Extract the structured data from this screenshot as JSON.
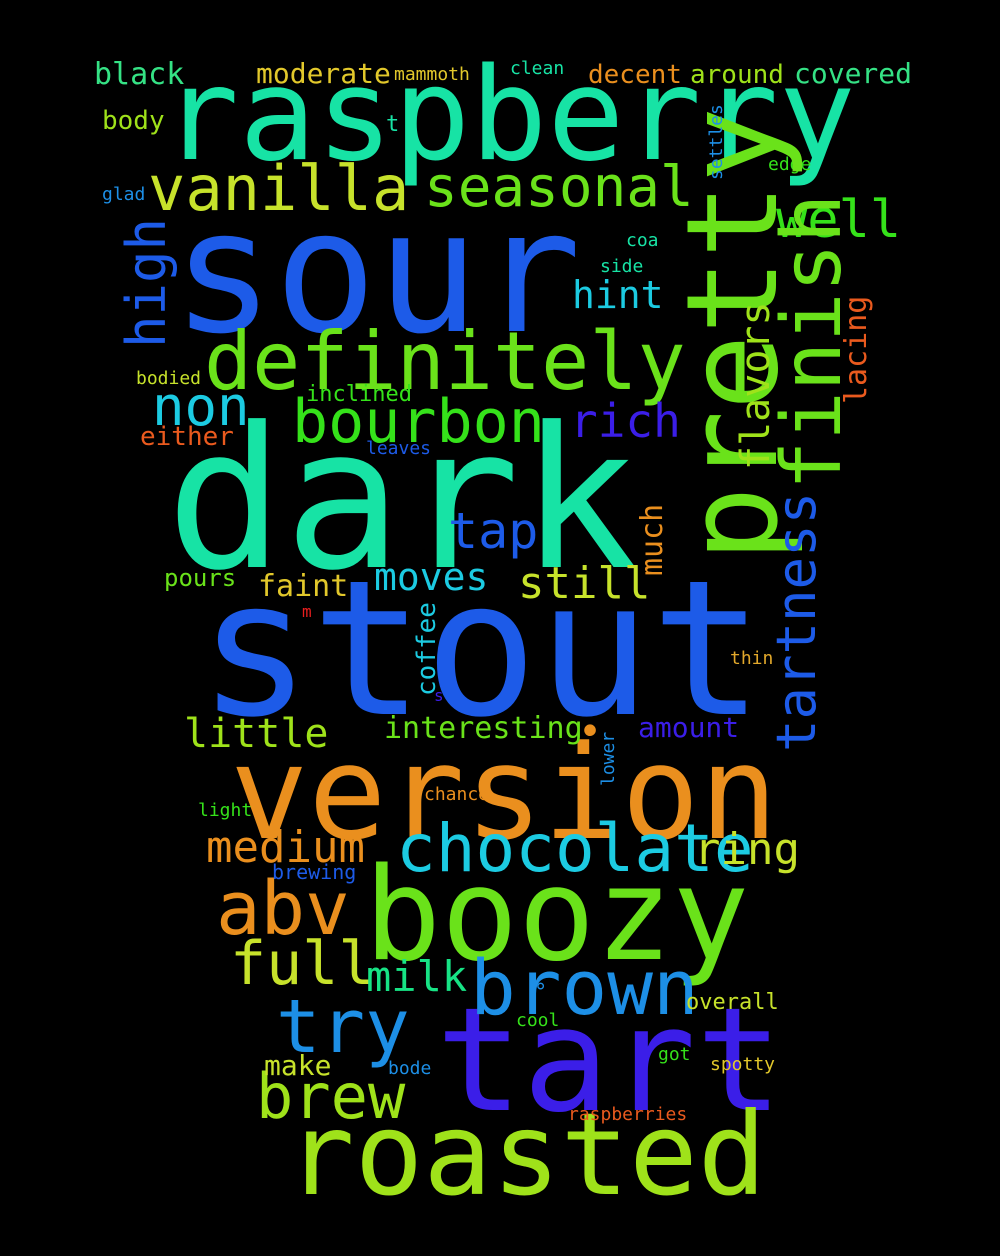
{
  "words": {
    "dark": {
      "text": "dark",
      "color": "#17e3a5"
    },
    "stout": {
      "text": "stout",
      "color": "#1d5be8"
    },
    "sour": {
      "text": "sour",
      "color": "#1d5be8"
    },
    "raspberry": {
      "text": "raspberry",
      "color": "#17e3a5"
    },
    "pretty": {
      "text": "pretty",
      "color": "#6ae21a"
    },
    "version": {
      "text": "version",
      "color": "#ea8f1e"
    },
    "boozy": {
      "text": "boozy",
      "color": "#6ae21a"
    },
    "tart": {
      "text": "tart",
      "color": "#3b1ee8"
    },
    "roasted": {
      "text": "roasted",
      "color": "#9fe21a"
    },
    "definitely": {
      "text": "definitely",
      "color": "#6ae21a"
    },
    "finish": {
      "text": "finish",
      "color": "#6ae21a"
    },
    "tartness": {
      "text": "tartness",
      "color": "#1d5be8"
    },
    "brown": {
      "text": "brown",
      "color": "#1d8fe6"
    },
    "chocolate": {
      "text": "chocolate",
      "color": "#1ccbe2"
    },
    "vanilla": {
      "text": "vanilla",
      "color": "#c7e22b"
    },
    "seasonal": {
      "text": "seasonal",
      "color": "#6ae21a"
    },
    "bourbon": {
      "text": "bourbon",
      "color": "#35e21a"
    },
    "abv": {
      "text": "abv",
      "color": "#ea8f1e"
    },
    "try": {
      "text": "try",
      "color": "#1d8fe6"
    },
    "brew": {
      "text": "brew",
      "color": "#9fe21a"
    },
    "full": {
      "text": "full",
      "color": "#c7e22b"
    },
    "well": {
      "text": "well",
      "color": "#35e21a"
    },
    "high": {
      "text": "high",
      "color": "#1d5be8"
    },
    "non": {
      "text": "non",
      "color": "#1ccbe2"
    },
    "tap": {
      "text": "tap",
      "color": "#1d5be8"
    },
    "rich": {
      "text": "rich",
      "color": "#3b1ee8"
    },
    "medium": {
      "text": "medium",
      "color": "#ea8f1e"
    },
    "milk": {
      "text": "milk",
      "color": "#17e385"
    },
    "ring": {
      "text": "ring",
      "color": "#c7e22b"
    },
    "still": {
      "text": "still",
      "color": "#c7e22b"
    },
    "little": {
      "text": "little",
      "color": "#9fe21a"
    },
    "moves": {
      "text": "moves",
      "color": "#1ccbe2"
    },
    "flavors": {
      "text": "flavors",
      "color": "#9fe21a"
    },
    "hint": {
      "text": "hint",
      "color": "#1ccbe2"
    },
    "interesting": {
      "text": "interesting",
      "color": "#6ae21a"
    },
    "black": {
      "text": "black",
      "color": "#35e285"
    },
    "moderate": {
      "text": "moderate",
      "color": "#e2c82b"
    },
    "decent": {
      "text": "decent",
      "color": "#ea8f1e"
    },
    "around": {
      "text": "around",
      "color": "#9fe21a"
    },
    "covered": {
      "text": "covered",
      "color": "#35e285"
    },
    "body": {
      "text": "body",
      "color": "#9fe21a"
    },
    "amount": {
      "text": "amount",
      "color": "#3b1ee8"
    },
    "faint": {
      "text": "faint",
      "color": "#e2c82b"
    },
    "much": {
      "text": "much",
      "color": "#ea8f1e"
    },
    "coffee": {
      "text": "coffee",
      "color": "#1ccbe2"
    },
    "lacing": {
      "text": "lacing",
      "color": "#ea5a1e"
    },
    "make": {
      "text": "make",
      "color": "#c7e22b"
    },
    "either": {
      "text": "either",
      "color": "#ea5a1e"
    },
    "pours": {
      "text": "pours",
      "color": "#6ae21a"
    },
    "inclined": {
      "text": "inclined",
      "color": "#35e21a"
    },
    "overall": {
      "text": "overall",
      "color": "#c7e22b"
    },
    "brewing": {
      "text": "brewing",
      "color": "#1d5be8"
    },
    "mammoth": {
      "text": "mammoth",
      "color": "#e2c82b"
    },
    "clean": {
      "text": "clean",
      "color": "#17e3a5"
    },
    "t": {
      "text": "t",
      "color": "#17e3a5"
    },
    "settles": {
      "text": "settles",
      "color": "#1d8fe6"
    },
    "edge": {
      "text": "edge",
      "color": "#35e21a"
    },
    "glad": {
      "text": "glad",
      "color": "#1d8fe6"
    },
    "coa": {
      "text": "coa",
      "color": "#17e3a5"
    },
    "side": {
      "text": "side",
      "color": "#17e3a5"
    },
    "bodied": {
      "text": "bodied",
      "color": "#c7e22b"
    },
    "leaves": {
      "text": "leaves",
      "color": "#1d5be8"
    },
    "m": {
      "text": "m",
      "color": "#ea1e1e"
    },
    "thin": {
      "text": "thin",
      "color": "#e2a82b"
    },
    "s": {
      "text": "s",
      "color": "#3b1ee8"
    },
    "lower": {
      "text": "lower",
      "color": "#1d8fe6"
    },
    "light": {
      "text": "light",
      "color": "#35e21a"
    },
    "chance": {
      "text": "chance",
      "color": "#ea8f1e"
    },
    "cool": {
      "text": "cool",
      "color": "#35e21a"
    },
    "bode": {
      "text": "bode",
      "color": "#1d8fe6"
    },
    "got": {
      "text": "got",
      "color": "#35e21a"
    },
    "spotty": {
      "text": "spotty",
      "color": "#e2c82b"
    },
    "raspberries": {
      "text": "raspberries",
      "color": "#ea5a1e"
    },
    "dot1": {
      "text": "•",
      "color": "#ea8f1e"
    },
    "dot2": {
      "text": "°",
      "color": "#1d8fe6"
    }
  }
}
